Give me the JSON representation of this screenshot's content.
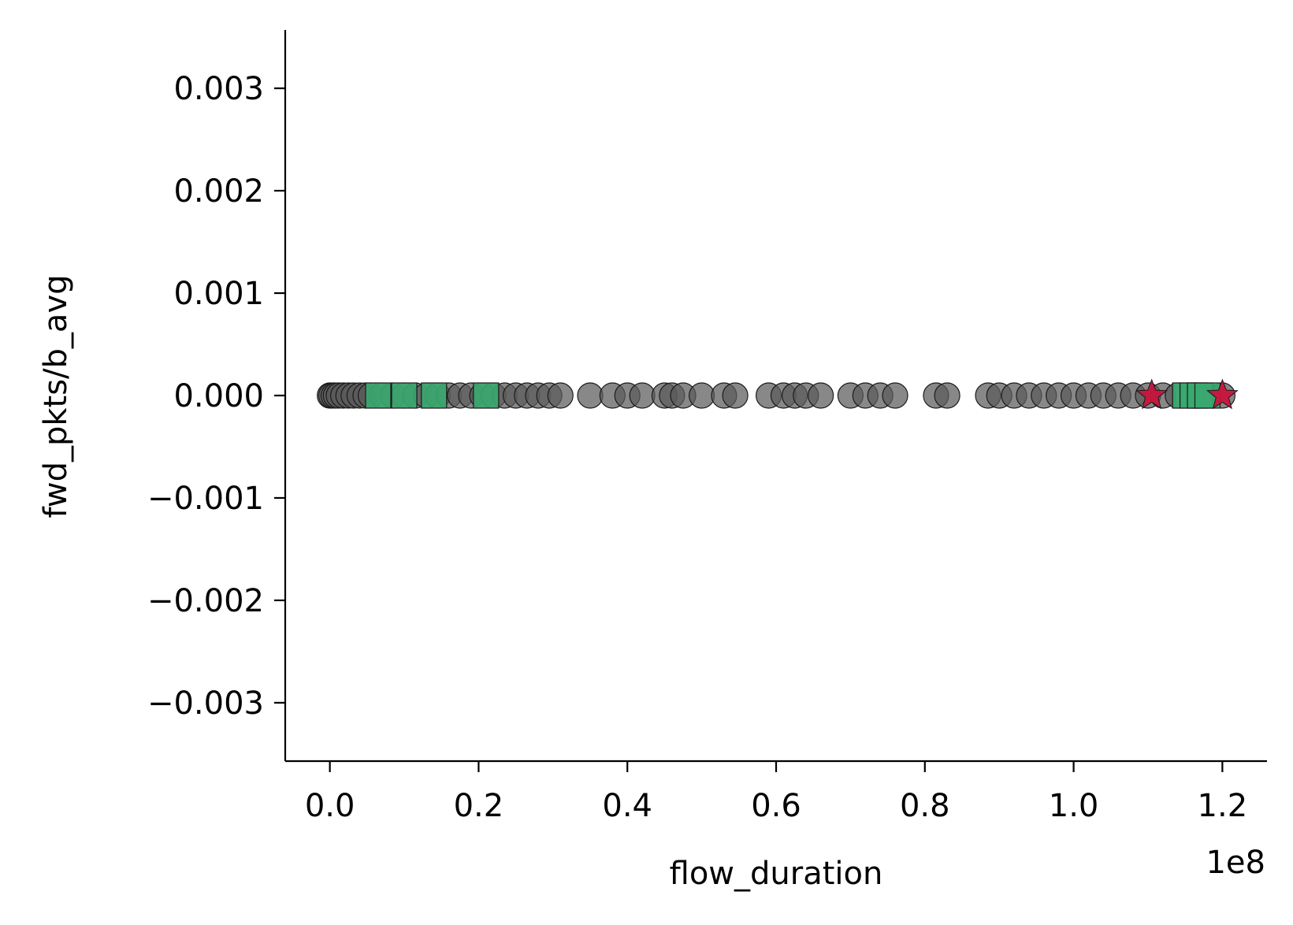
{
  "chart_data": {
    "type": "scatter",
    "title": "",
    "xlabel": "flow_duration",
    "ylabel": "fwd_pkts/b_avg",
    "x_offset_label": "1e8",
    "x_scale": 100000000,
    "xlim": [
      -0.06,
      1.26
    ],
    "ylim": [
      -0.00357,
      0.00357
    ],
    "x_ticks": [
      0.0,
      0.2,
      0.4,
      0.6,
      0.8,
      1.0,
      1.2
    ],
    "x_tick_labels": [
      "0.0",
      "0.2",
      "0.4",
      "0.6",
      "0.8",
      "1.0",
      "1.2"
    ],
    "y_ticks": [
      0.003,
      0.002,
      0.001,
      0.0,
      -0.001,
      -0.002,
      -0.003
    ],
    "y_tick_labels": [
      "0.003",
      "0.002",
      "0.001",
      "0.000",
      "−0.001",
      "−0.002",
      "−0.003"
    ],
    "grid": false,
    "legend": false,
    "series": [
      {
        "marker": "circle",
        "color": "#5a5a5a",
        "x": [
          0.0,
          0.002,
          0.005,
          0.008,
          0.012,
          0.018,
          0.025,
          0.032,
          0.04,
          0.048,
          0.055,
          0.07,
          0.085,
          0.1,
          0.115,
          0.13,
          0.145,
          0.16,
          0.175,
          0.19,
          0.205,
          0.22,
          0.235,
          0.25,
          0.265,
          0.28,
          0.295,
          0.31,
          0.35,
          0.38,
          0.4,
          0.42,
          0.45,
          0.46,
          0.475,
          0.5,
          0.53,
          0.545,
          0.59,
          0.61,
          0.625,
          0.64,
          0.66,
          0.7,
          0.72,
          0.74,
          0.76,
          0.815,
          0.83,
          0.885,
          0.9,
          0.92,
          0.94,
          0.96,
          0.98,
          1.0,
          1.02,
          1.04,
          1.06,
          1.08,
          1.1,
          1.12,
          1.14,
          1.16,
          1.18,
          1.2
        ],
        "y": [
          0.0,
          0.0,
          0.0,
          0.0,
          0.0,
          0.0,
          0.0,
          0.0,
          0.0,
          0.0,
          0.0,
          0.0,
          0.0,
          0.0,
          0.0,
          0.0,
          0.0,
          0.0,
          0.0,
          0.0,
          0.0,
          0.0,
          0.0,
          0.0,
          0.0,
          0.0,
          0.0,
          0.0,
          0.0,
          0.0,
          0.0,
          0.0,
          0.0,
          0.0,
          0.0,
          0.0,
          0.0,
          0.0,
          0.0,
          0.0,
          0.0,
          0.0,
          0.0,
          0.0,
          0.0,
          0.0,
          0.0,
          0.0,
          0.0,
          0.0,
          0.0,
          0.0,
          0.0,
          0.0,
          0.0,
          0.0,
          0.0,
          0.0,
          0.0,
          0.0,
          0.0,
          0.0,
          0.0,
          0.0,
          0.0,
          0.0
        ]
      },
      {
        "marker": "square",
        "color": "#3aa86f",
        "x": [
          0.065,
          0.1,
          0.14,
          0.21,
          1.15,
          1.16,
          1.17,
          1.18
        ],
        "y": [
          0.0,
          0.0,
          0.0,
          0.0,
          0.0,
          0.0,
          0.0,
          0.0
        ]
      },
      {
        "marker": "star",
        "color": "#c8143c",
        "x": [
          1.105,
          1.2
        ],
        "y": [
          0.0,
          0.0
        ]
      }
    ]
  }
}
